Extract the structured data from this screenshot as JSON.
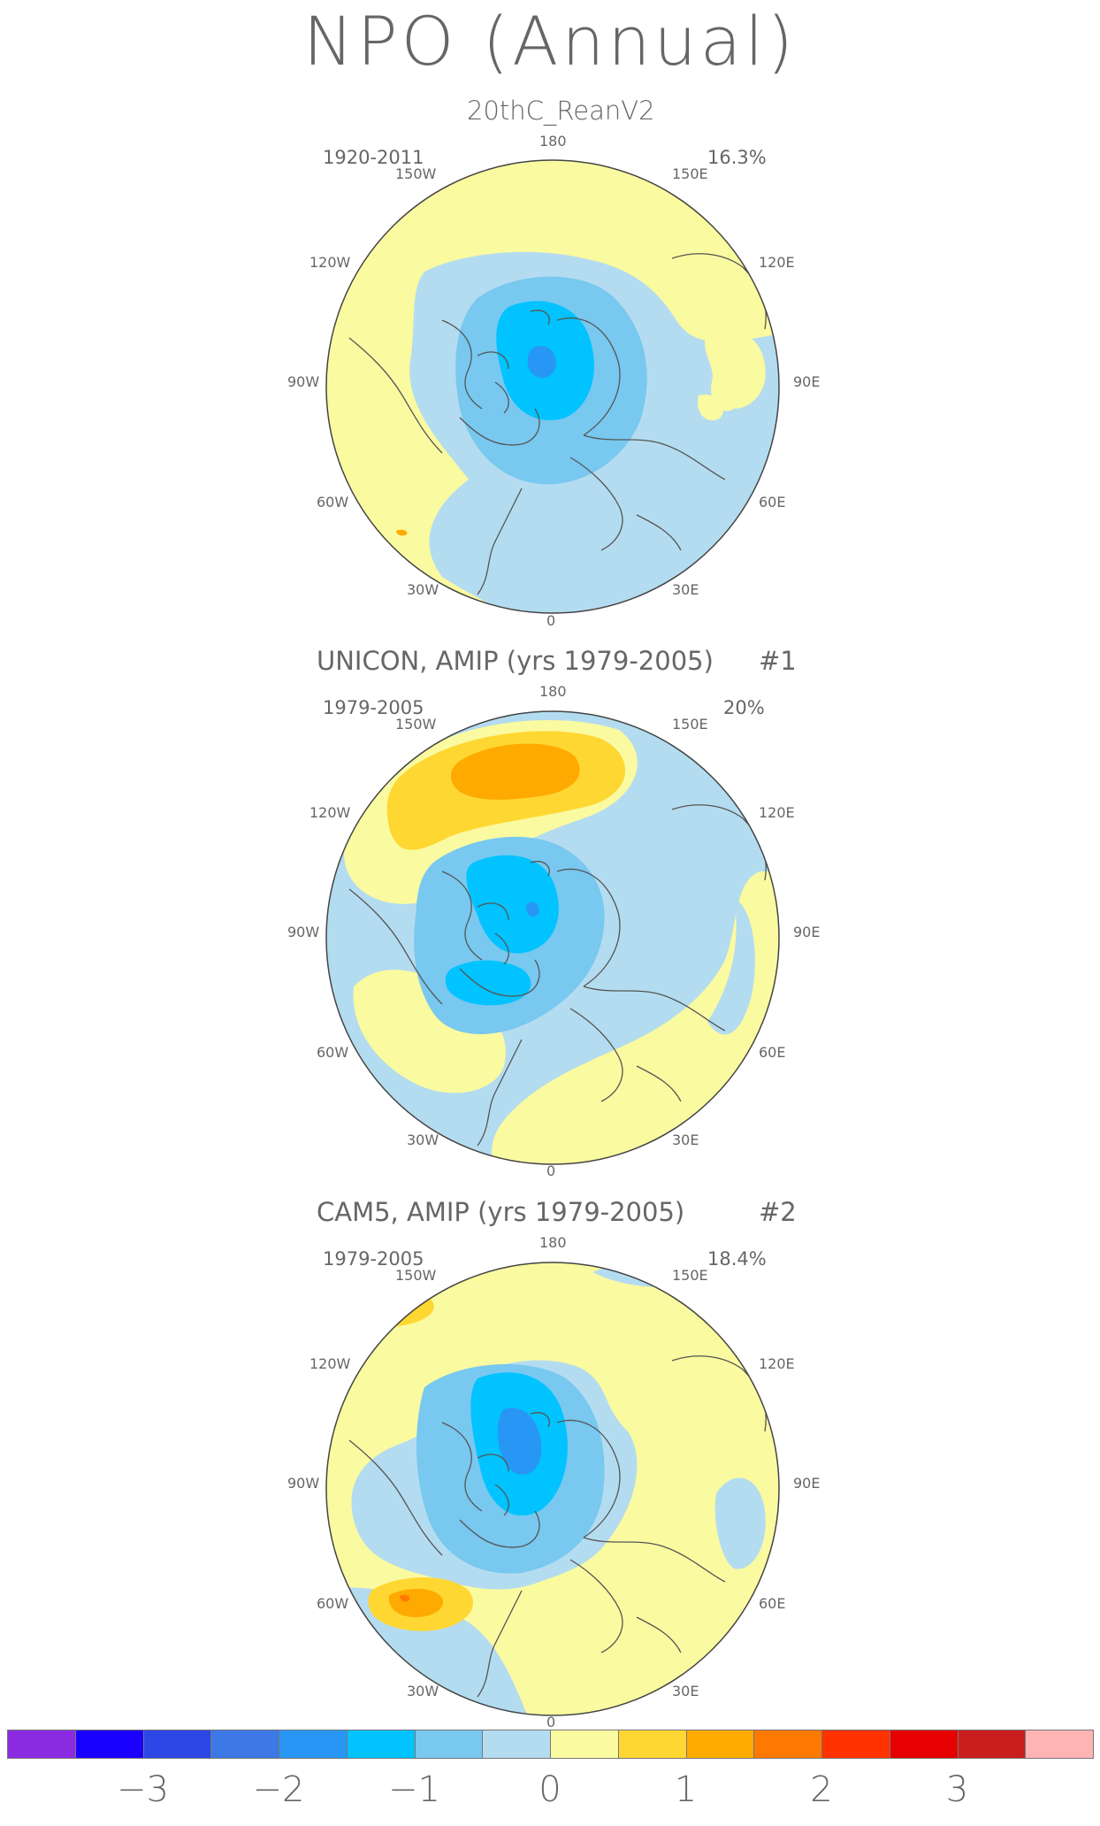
{
  "title": "NPO (Annual)",
  "panels": [
    {
      "heading": "20thC_ReanV2",
      "number": "",
      "period": "1920-2011",
      "variance": "16.3%"
    },
    {
      "heading": "UNICON, AMIP (yrs 1979-2005)",
      "number": "#1",
      "period": "1979-2005",
      "variance": "20%"
    },
    {
      "heading": "CAM5, AMIP (yrs 1979-2005)",
      "number": "#2",
      "period": "1979-2005",
      "variance": "18.4%"
    }
  ],
  "longitude_labels": {
    "top": "180",
    "upper_left": "150W",
    "upper_right": "150E",
    "mid_upper_left": "120W",
    "mid_upper_right": "120E",
    "left": "90W",
    "right": "90E",
    "mid_lower_left": "60W",
    "mid_lower_right": "60E",
    "lower_left": "30W",
    "lower_right": "30E",
    "bottom": "0"
  },
  "colorbar": {
    "colors": [
      "#8a2be2",
      "#1a00ff",
      "#2d46e6",
      "#3c78e6",
      "#2896f5",
      "#00c3ff",
      "#78c8f0",
      "#b4dcf0",
      "#fafaa0",
      "#ffd732",
      "#ffaa00",
      "#ff7800",
      "#ff3200",
      "#e60000",
      "#c81e1e",
      "#ffb4b4"
    ],
    "tick_labels": [
      "-3",
      "-2",
      "-1",
      "0",
      "1",
      "2",
      "3"
    ]
  },
  "palette": {
    "light_blue": "#b4dcf0",
    "mid_blue": "#78c8f0",
    "cyan": "#00c3ff",
    "blue": "#2896f5",
    "light_yellow": "#fafaa0",
    "yellow": "#ffd732",
    "orange": "#ffaa00",
    "dark_orange": "#ff7800"
  }
}
